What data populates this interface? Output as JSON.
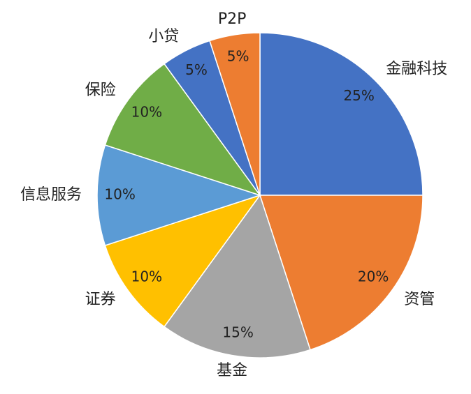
{
  "chart_data": {
    "type": "pie",
    "categories": [
      "金融科技",
      "资管",
      "基金",
      "证券",
      "信息服务",
      "保险",
      "小贷",
      "P2P"
    ],
    "values": [
      25,
      20,
      15,
      10,
      10,
      10,
      5,
      5
    ],
    "value_labels": [
      "25%",
      "20%",
      "15%",
      "10%",
      "10%",
      "10%",
      "5%",
      "5%"
    ],
    "colors": [
      "#4472c4",
      "#ed7d31",
      "#a5a5a5",
      "#ffc000",
      "#5b9bd5",
      "#70ad47",
      "#4472c4",
      "#ed7d31"
    ]
  }
}
